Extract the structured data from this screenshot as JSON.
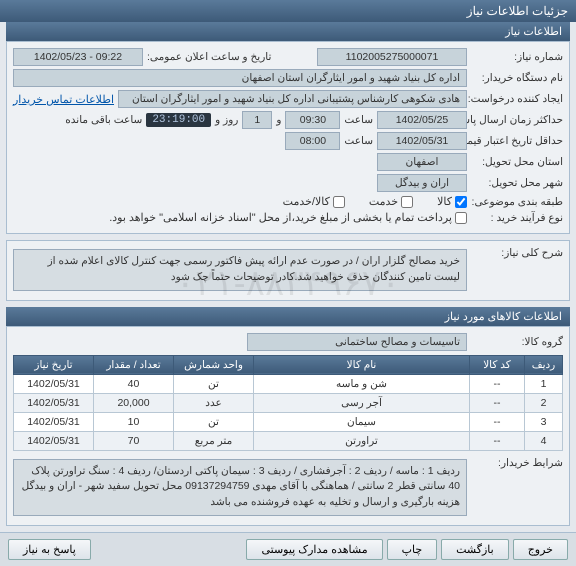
{
  "window_title": "جزئیات اطلاعات نیاز",
  "info": {
    "header": "اطلاعات نیاز",
    "need_no_label": "شماره نیاز:",
    "need_no": "1102005275000071",
    "announce_label": "تاریخ و ساعت اعلان عمومی:",
    "announce_val": "1402/05/23 - 09:22",
    "buyer_label": "نام دستگاه خریدار:",
    "buyer_val": "اداره کل بنیاد شهید و امور ایثارگران استان اصفهان",
    "creator_label": "ایجاد کننده درخواست:",
    "creator_val": "هادی شکوهی کارشناس پشتیبانی اداره کل بنیاد شهید و امور ایثارگران استان",
    "contact_link": "اطلاعات تماس خریدار",
    "deadline_label": "حداکثر زمان ارسال پاسخ:",
    "deadline_date": "1402/05/25",
    "hour_label": "ساعت",
    "deadline_time": "09:30",
    "deadline_and": "و",
    "deadline_days": "1",
    "deadline_days_label": "روز و",
    "countdown": "23:19:00",
    "remain_label": "ساعت باقی مانده",
    "validity_label": "حداقل تاریخ اعتبار قیمت تا تاریخ:",
    "validity_date": "1402/05/31",
    "validity_time": "08:00",
    "delivery_prov_label": "استان محل تحویل:",
    "delivery_prov": "اصفهان",
    "delivery_city_label": "شهر محل تحویل:",
    "delivery_city": "اران و بیدگل",
    "pkg_label": "طبقه بندی موضوعی:",
    "pkg_goods": "کالا",
    "pkg_services": "خدمت",
    "pkg_both": "کالا/خدمت",
    "process_label": "نوع فرآیند خرید :",
    "process_check": "پرداخت تمام یا بخشی از مبلغ خرید،از محل \"اسناد خزانه اسلامی\" خواهد بود."
  },
  "desc": {
    "label": "شرح کلی نیاز:",
    "text": "خرید مصالح گلزار  اران / در صورت عدم ارائه پیش فاکتور رسمی جهت کنترل کالای اعلام شده از لیست تامین کنندگان حذف خواهید شد.کادر توضیحات حتماً چک شود"
  },
  "items": {
    "header": "اطلاعات کالاهای مورد نیاز",
    "group_label": "گروه کالا:",
    "group_val": "تاسیسات و مصالح ساختمانی",
    "cols": [
      "ردیف",
      "کد کالا",
      "نام کالا",
      "واحد شمارش",
      "تعداد / مقدار",
      "تاریخ نیاز"
    ],
    "rows": [
      [
        "1",
        "--",
        "شن و ماسه",
        "تن",
        "40",
        "1402/05/31"
      ],
      [
        "2",
        "--",
        "آجر رسی",
        "عدد",
        "20,000",
        "1402/05/31"
      ],
      [
        "3",
        "--",
        "سیمان",
        "تن",
        "10",
        "1402/05/31"
      ],
      [
        "4",
        "--",
        "تراورتن",
        "متر مربع",
        "70",
        "1402/05/31"
      ]
    ],
    "cond_label": "شرایط خریدار:",
    "cond_text": "ردیف 1 : ماسه / ردیف 2 : آجرفشاری / ردیف 3 : سیمان پاکتی اردستان/ ردیف 4 : سنگ تراورتن پلاک 40 سانتی قطر 2 سانتی / هماهنگی با آقای مهدی 09137294759 محل تحویل سفید شهر - اران و بیدگل\nهزینه بارگیری و ارسال و تخلیه به عهده فروشنده می باشد"
  },
  "buttons": {
    "exit": "خروج",
    "back": "بازگشت",
    "print": "چاپ",
    "attach": "مشاهده مدارک پیوستی",
    "reply": "پاسخ به نیاز"
  },
  "watermark": "۰۲۱-۸۸۳۴۹۶۷۰"
}
